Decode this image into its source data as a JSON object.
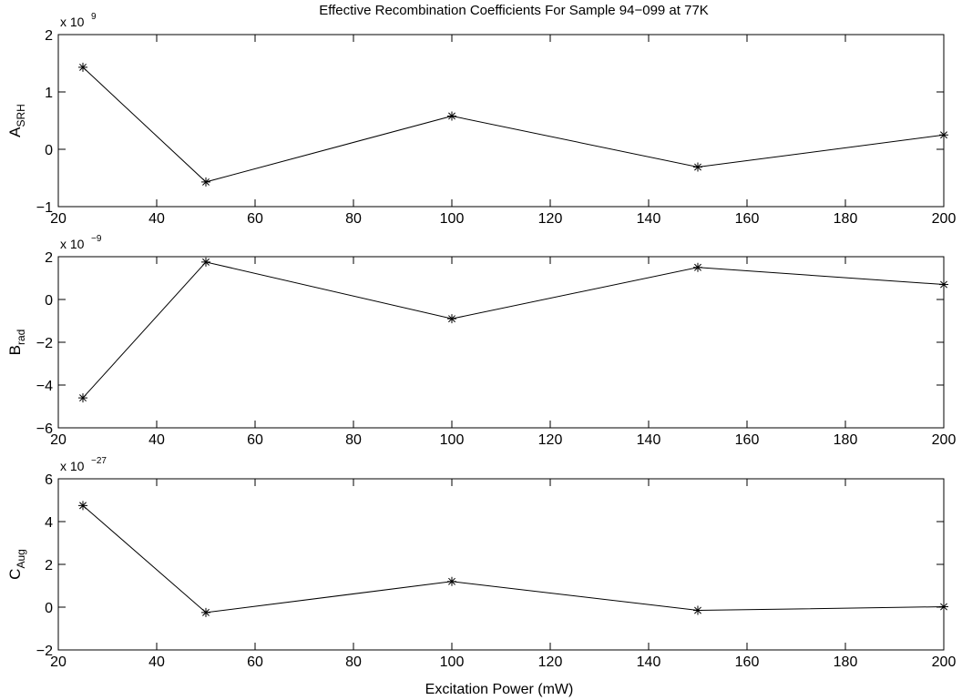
{
  "chart_data": [
    {
      "type": "line",
      "title": "Effective Recombination Coefficients For Sample 94−099 at 77K",
      "ylabel_main": "A",
      "ylabel_sub": "SRH",
      "exponent_base": "x 10",
      "exponent_power": "9",
      "x": [
        25,
        50,
        100,
        150,
        200
      ],
      "values": [
        1.43,
        -0.57,
        0.58,
        -0.31,
        0.25
      ],
      "xlim": [
        20,
        200
      ],
      "ylim": [
        -1,
        2
      ],
      "xticks": [
        20,
        40,
        60,
        80,
        100,
        120,
        140,
        160,
        180,
        200
      ],
      "xtick_labels": [
        "20",
        "40",
        "60",
        "80",
        "100",
        "120",
        "140",
        "160",
        "180",
        "200"
      ],
      "yticks": [
        -1,
        0,
        1,
        2
      ],
      "ytick_labels": [
        "−1",
        "0",
        "1",
        "2"
      ],
      "marker": "asterisk",
      "grid": false
    },
    {
      "type": "line",
      "ylabel_main": "B",
      "ylabel_sub": "rad",
      "exponent_base": "x 10",
      "exponent_power": "−9",
      "x": [
        25,
        50,
        100,
        150,
        200
      ],
      "values": [
        -4.6,
        1.75,
        -0.9,
        1.5,
        0.7
      ],
      "xlim": [
        20,
        200
      ],
      "ylim": [
        -6,
        2
      ],
      "xticks": [
        20,
        40,
        60,
        80,
        100,
        120,
        140,
        160,
        180,
        200
      ],
      "xtick_labels": [
        "20",
        "40",
        "60",
        "80",
        "100",
        "120",
        "140",
        "160",
        "180",
        "200"
      ],
      "yticks": [
        -6,
        -4,
        -2,
        0,
        2
      ],
      "ytick_labels": [
        "−6",
        "−4",
        "−2",
        "0",
        "2"
      ],
      "marker": "asterisk",
      "grid": false
    },
    {
      "type": "line",
      "ylabel_main": "C",
      "ylabel_sub": "Aug",
      "exponent_base": "x 10",
      "exponent_power": "−27",
      "xlabel": "Excitation Power (mW)",
      "x": [
        25,
        50,
        100,
        150,
        200
      ],
      "values": [
        4.75,
        -0.25,
        1.2,
        -0.15,
        0.02
      ],
      "xlim": [
        20,
        200
      ],
      "ylim": [
        -2,
        6
      ],
      "xticks": [
        20,
        40,
        60,
        80,
        100,
        120,
        140,
        160,
        180,
        200
      ],
      "xtick_labels": [
        "20",
        "40",
        "60",
        "80",
        "100",
        "120",
        "140",
        "160",
        "180",
        "200"
      ],
      "yticks": [
        -2,
        0,
        2,
        4,
        6
      ],
      "ytick_labels": [
        "−2",
        "0",
        "2",
        "4",
        "6"
      ],
      "marker": "asterisk",
      "grid": false
    }
  ]
}
